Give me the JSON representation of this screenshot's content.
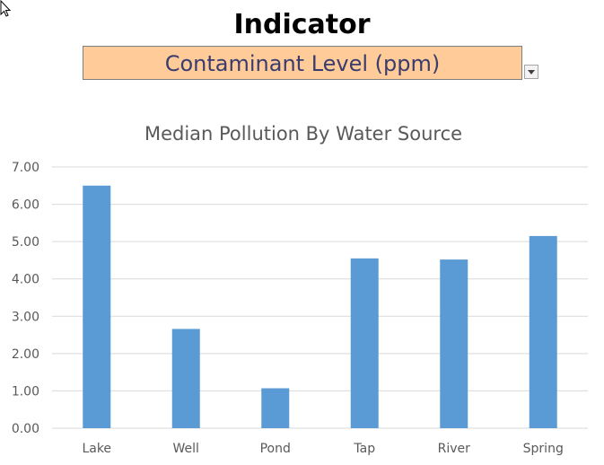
{
  "header": {
    "title": "Indicator",
    "selected_value": "Contaminant Level (ppm)"
  },
  "icons": {
    "cursor": "mouse-pointer-icon",
    "dropdown": "dropdown-arrow-icon"
  },
  "chart_data": {
    "type": "bar",
    "title": "Median Pollution By Water Source",
    "categories": [
      "Lake",
      "Well",
      "Pond",
      "Tap",
      "River",
      "Spring"
    ],
    "values": [
      6.5,
      2.66,
      1.07,
      4.55,
      4.52,
      5.15
    ],
    "ylim": [
      0,
      7
    ],
    "yticks": [
      "0.00",
      "1.00",
      "2.00",
      "3.00",
      "4.00",
      "5.00",
      "6.00",
      "7.00"
    ],
    "grid": true,
    "legend": "none",
    "bar_color": "#5b9bd5",
    "grid_color": "#d9d9d9",
    "text_color": "#595959"
  }
}
